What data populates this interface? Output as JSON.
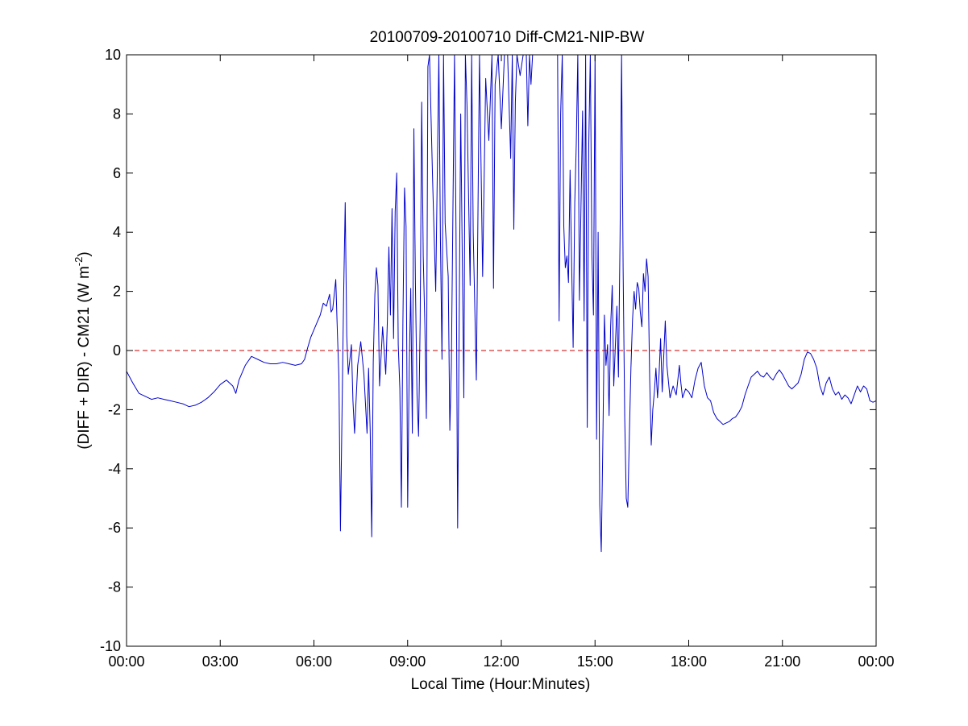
{
  "chart_data": {
    "type": "line",
    "title": "20100709-20100710 Diff-CM21-NIP-BW",
    "xlabel": "Local Time (Hour:Minutes)",
    "ylabel": {
      "prefix": "(DIFF + DIR) - CM21 (W m",
      "superscript": "-2",
      "suffix": ")"
    },
    "x_unit": "hours",
    "xlim": [
      0,
      24
    ],
    "ylim": [
      -10,
      10
    ],
    "xticks": [
      0,
      3,
      6,
      9,
      12,
      15,
      18,
      21,
      24
    ],
    "xtick_labels": [
      "00:00",
      "03:00",
      "06:00",
      "09:00",
      "12:00",
      "15:00",
      "18:00",
      "21:00",
      "00:00"
    ],
    "yticks": [
      -10,
      -8,
      -6,
      -4,
      -2,
      0,
      2,
      4,
      6,
      8,
      10
    ],
    "ytick_labels": [
      "-10",
      "-8",
      "-6",
      "-4",
      "-2",
      "0",
      "2",
      "4",
      "6",
      "8",
      "10"
    ],
    "grid": false,
    "reference_line": {
      "y": 0,
      "style": "dashed",
      "color": "#cc0000"
    },
    "series": [
      {
        "color": "#0000cc",
        "points": [
          [
            0.0,
            -0.7
          ],
          [
            0.2,
            -1.1
          ],
          [
            0.4,
            -1.45
          ],
          [
            0.6,
            -1.55
          ],
          [
            0.8,
            -1.65
          ],
          [
            1.0,
            -1.6
          ],
          [
            1.2,
            -1.65
          ],
          [
            1.4,
            -1.7
          ],
          [
            1.6,
            -1.75
          ],
          [
            1.8,
            -1.8
          ],
          [
            2.0,
            -1.9
          ],
          [
            2.2,
            -1.85
          ],
          [
            2.4,
            -1.75
          ],
          [
            2.6,
            -1.6
          ],
          [
            2.8,
            -1.4
          ],
          [
            3.0,
            -1.15
          ],
          [
            3.2,
            -1.0
          ],
          [
            3.4,
            -1.2
          ],
          [
            3.5,
            -1.45
          ],
          [
            3.6,
            -1.0
          ],
          [
            3.8,
            -0.5
          ],
          [
            4.0,
            -0.2
          ],
          [
            4.2,
            -0.3
          ],
          [
            4.4,
            -0.4
          ],
          [
            4.6,
            -0.45
          ],
          [
            4.8,
            -0.45
          ],
          [
            5.0,
            -0.4
          ],
          [
            5.2,
            -0.45
          ],
          [
            5.4,
            -0.5
          ],
          [
            5.6,
            -0.45
          ],
          [
            5.7,
            -0.3
          ],
          [
            5.8,
            0.1
          ],
          [
            5.9,
            0.45
          ],
          [
            6.0,
            0.7
          ],
          [
            6.1,
            0.95
          ],
          [
            6.2,
            1.2
          ],
          [
            6.3,
            1.6
          ],
          [
            6.4,
            1.5
          ],
          [
            6.5,
            1.9
          ],
          [
            6.55,
            1.3
          ],
          [
            6.6,
            1.4
          ],
          [
            6.7,
            2.4
          ],
          [
            6.75,
            0.6
          ],
          [
            6.8,
            -0.9
          ],
          [
            6.85,
            -6.1
          ],
          [
            6.9,
            -2.0
          ],
          [
            6.95,
            1.8
          ],
          [
            7.0,
            5.0
          ],
          [
            7.05,
            0.5
          ],
          [
            7.1,
            -0.8
          ],
          [
            7.15,
            -0.3
          ],
          [
            7.2,
            0.2
          ],
          [
            7.25,
            -1.7
          ],
          [
            7.3,
            -2.8
          ],
          [
            7.4,
            -0.5
          ],
          [
            7.5,
            0.3
          ],
          [
            7.6,
            -0.8
          ],
          [
            7.7,
            -2.8
          ],
          [
            7.75,
            -0.6
          ],
          [
            7.8,
            -2.7
          ],
          [
            7.85,
            -6.3
          ],
          [
            7.9,
            -0.4
          ],
          [
            7.95,
            1.9
          ],
          [
            8.0,
            2.8
          ],
          [
            8.05,
            2.2
          ],
          [
            8.1,
            -1.2
          ],
          [
            8.2,
            0.8
          ],
          [
            8.3,
            -0.8
          ],
          [
            8.35,
            1.0
          ],
          [
            8.4,
            3.5
          ],
          [
            8.45,
            1.2
          ],
          [
            8.5,
            4.8
          ],
          [
            8.55,
            0.4
          ],
          [
            8.6,
            4.7
          ],
          [
            8.65,
            6.0
          ],
          [
            8.7,
            0.2
          ],
          [
            8.75,
            -1.3
          ],
          [
            8.8,
            -5.3
          ],
          [
            8.85,
            1.0
          ],
          [
            8.9,
            5.5
          ],
          [
            8.95,
            4.2
          ],
          [
            9.0,
            -5.3
          ],
          [
            9.05,
            -0.6
          ],
          [
            9.1,
            2.1
          ],
          [
            9.15,
            -2.8
          ],
          [
            9.2,
            7.5
          ],
          [
            9.25,
            2.3
          ],
          [
            9.3,
            -1.5
          ],
          [
            9.35,
            -2.9
          ],
          [
            9.4,
            1.0
          ],
          [
            9.45,
            8.4
          ],
          [
            9.5,
            3.2
          ],
          [
            9.55,
            0.9
          ],
          [
            9.6,
            -2.3
          ],
          [
            9.65,
            9.6
          ],
          [
            9.7,
            10.0
          ],
          [
            9.8,
            5.7
          ],
          [
            9.9,
            2.0
          ],
          [
            10.0,
            10.0
          ],
          [
            10.05,
            3.8
          ],
          [
            10.1,
            -0.3
          ],
          [
            10.15,
            10.0
          ],
          [
            10.2,
            4.3
          ],
          [
            10.3,
            2.5
          ],
          [
            10.35,
            -2.7
          ],
          [
            10.4,
            -0.5
          ],
          [
            10.5,
            10.0
          ],
          [
            10.55,
            4.0
          ],
          [
            10.6,
            -6.0
          ],
          [
            10.7,
            8.0
          ],
          [
            10.75,
            3.0
          ],
          [
            10.8,
            -1.6
          ],
          [
            10.85,
            10.0
          ],
          [
            10.9,
            8.3
          ],
          [
            11.0,
            2.2
          ],
          [
            11.05,
            10.0
          ],
          [
            11.1,
            4.0
          ],
          [
            11.2,
            -1.0
          ],
          [
            11.3,
            10.0
          ],
          [
            11.4,
            2.5
          ],
          [
            11.5,
            9.2
          ],
          [
            11.6,
            7.1
          ],
          [
            11.7,
            10.0
          ],
          [
            11.75,
            2.1
          ],
          [
            11.8,
            9.0
          ],
          [
            11.9,
            10.0
          ],
          [
            12.0,
            7.5
          ],
          [
            12.1,
            10.0
          ],
          [
            12.2,
            10.0
          ],
          [
            12.3,
            6.5
          ],
          [
            12.35,
            10.0
          ],
          [
            12.4,
            4.1
          ],
          [
            12.45,
            8.4
          ],
          [
            12.5,
            10.0
          ],
          [
            12.6,
            9.3
          ],
          [
            12.7,
            10.0
          ],
          [
            12.8,
            10.0
          ],
          [
            12.85,
            7.6
          ],
          [
            12.9,
            10.0
          ],
          [
            12.95,
            9.0
          ],
          [
            13.0,
            10.0
          ],
          [
            13.2,
            10.0
          ],
          [
            13.4,
            10.0
          ],
          [
            13.6,
            10.0
          ],
          [
            13.8,
            10.0
          ],
          [
            13.85,
            1.0
          ],
          [
            13.9,
            8.0
          ],
          [
            13.95,
            10.0
          ],
          [
            14.0,
            4.2
          ],
          [
            14.05,
            2.8
          ],
          [
            14.1,
            3.2
          ],
          [
            14.15,
            2.3
          ],
          [
            14.2,
            6.1
          ],
          [
            14.25,
            3.0
          ],
          [
            14.3,
            0.1
          ],
          [
            14.35,
            5.0
          ],
          [
            14.4,
            7.0
          ],
          [
            14.45,
            10.0
          ],
          [
            14.5,
            1.7
          ],
          [
            14.6,
            8.1
          ],
          [
            14.65,
            1.0
          ],
          [
            14.7,
            10.0
          ],
          [
            14.75,
            -2.6
          ],
          [
            14.8,
            7.0
          ],
          [
            14.85,
            10.0
          ],
          [
            14.9,
            3.2
          ],
          [
            14.95,
            1.2
          ],
          [
            15.0,
            10.0
          ],
          [
            15.05,
            -3.0
          ],
          [
            15.1,
            4.0
          ],
          [
            15.15,
            -5.2
          ],
          [
            15.2,
            -6.8
          ],
          [
            15.25,
            -3.2
          ],
          [
            15.3,
            1.2
          ],
          [
            15.35,
            -0.5
          ],
          [
            15.4,
            0.2
          ],
          [
            15.45,
            -2.2
          ],
          [
            15.5,
            0.8
          ],
          [
            15.55,
            2.2
          ],
          [
            15.6,
            -1.2
          ],
          [
            15.7,
            1.5
          ],
          [
            15.75,
            -0.9
          ],
          [
            15.8,
            3.8
          ],
          [
            15.85,
            10.0
          ],
          [
            15.9,
            2.8
          ],
          [
            15.95,
            -2.3
          ],
          [
            16.0,
            -5.0
          ],
          [
            16.05,
            -5.3
          ],
          [
            16.1,
            -2.8
          ],
          [
            16.15,
            -0.6
          ],
          [
            16.2,
            1.0
          ],
          [
            16.25,
            2.0
          ],
          [
            16.3,
            1.4
          ],
          [
            16.35,
            2.3
          ],
          [
            16.4,
            2.1
          ],
          [
            16.45,
            1.3
          ],
          [
            16.5,
            0.8
          ],
          [
            16.55,
            2.6
          ],
          [
            16.6,
            2.0
          ],
          [
            16.65,
            3.1
          ],
          [
            16.7,
            2.5
          ],
          [
            16.75,
            -1.0
          ],
          [
            16.8,
            -3.2
          ],
          [
            16.85,
            -2.0
          ],
          [
            16.9,
            -1.4
          ],
          [
            16.95,
            -0.6
          ],
          [
            17.0,
            -1.6
          ],
          [
            17.05,
            -0.8
          ],
          [
            17.1,
            0.4
          ],
          [
            17.15,
            -1.4
          ],
          [
            17.2,
            -0.2
          ],
          [
            17.25,
            1.0
          ],
          [
            17.3,
            -0.5
          ],
          [
            17.4,
            -1.6
          ],
          [
            17.5,
            -1.2
          ],
          [
            17.6,
            -1.5
          ],
          [
            17.7,
            -0.5
          ],
          [
            17.75,
            -1.1
          ],
          [
            17.8,
            -1.6
          ],
          [
            17.9,
            -1.3
          ],
          [
            18.0,
            -1.4
          ],
          [
            18.1,
            -1.6
          ],
          [
            18.2,
            -1.0
          ],
          [
            18.3,
            -0.6
          ],
          [
            18.4,
            -0.4
          ],
          [
            18.5,
            -1.2
          ],
          [
            18.6,
            -1.6
          ],
          [
            18.7,
            -1.7
          ],
          [
            18.8,
            -2.1
          ],
          [
            18.9,
            -2.3
          ],
          [
            19.0,
            -2.4
          ],
          [
            19.1,
            -2.5
          ],
          [
            19.2,
            -2.45
          ],
          [
            19.3,
            -2.4
          ],
          [
            19.4,
            -2.3
          ],
          [
            19.5,
            -2.25
          ],
          [
            19.6,
            -2.1
          ],
          [
            19.7,
            -1.9
          ],
          [
            19.8,
            -1.5
          ],
          [
            19.9,
            -1.2
          ],
          [
            20.0,
            -0.9
          ],
          [
            20.1,
            -0.8
          ],
          [
            20.2,
            -0.7
          ],
          [
            20.3,
            -0.85
          ],
          [
            20.4,
            -0.9
          ],
          [
            20.5,
            -0.75
          ],
          [
            20.6,
            -0.9
          ],
          [
            20.7,
            -1.0
          ],
          [
            20.8,
            -0.8
          ],
          [
            20.9,
            -0.65
          ],
          [
            21.0,
            -0.8
          ],
          [
            21.1,
            -1.0
          ],
          [
            21.2,
            -1.2
          ],
          [
            21.3,
            -1.3
          ],
          [
            21.4,
            -1.2
          ],
          [
            21.5,
            -1.1
          ],
          [
            21.6,
            -0.8
          ],
          [
            21.7,
            -0.3
          ],
          [
            21.8,
            -0.05
          ],
          [
            21.9,
            -0.1
          ],
          [
            22.0,
            -0.3
          ],
          [
            22.1,
            -0.6
          ],
          [
            22.2,
            -1.2
          ],
          [
            22.3,
            -1.5
          ],
          [
            22.4,
            -1.1
          ],
          [
            22.5,
            -0.9
          ],
          [
            22.6,
            -1.3
          ],
          [
            22.7,
            -1.5
          ],
          [
            22.8,
            -1.4
          ],
          [
            22.9,
            -1.65
          ],
          [
            23.0,
            -1.5
          ],
          [
            23.1,
            -1.6
          ],
          [
            23.2,
            -1.8
          ],
          [
            23.3,
            -1.5
          ],
          [
            23.4,
            -1.2
          ],
          [
            23.5,
            -1.4
          ],
          [
            23.6,
            -1.2
          ],
          [
            23.7,
            -1.3
          ],
          [
            23.8,
            -1.7
          ],
          [
            23.9,
            -1.75
          ],
          [
            24.0,
            -1.7
          ]
        ]
      }
    ]
  }
}
